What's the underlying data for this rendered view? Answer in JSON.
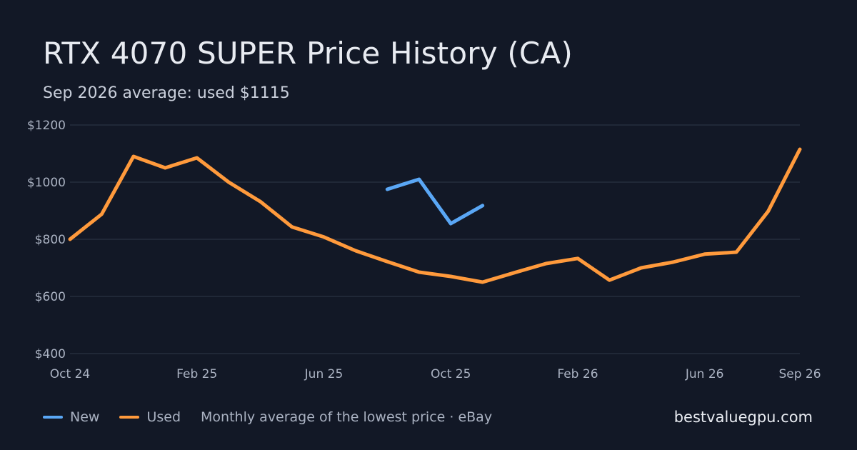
{
  "colors": {
    "background": "#121826",
    "new": "#5aa7f5",
    "used": "#ff9a3c",
    "grid": "#2a3242"
  },
  "chart_data": {
    "type": "line",
    "title": "RTX 4070 SUPER Price History (CA)",
    "subtitle": "Sep 2026 average: used $1115",
    "x": [
      "2024-10",
      "2024-11",
      "2024-12",
      "2025-01",
      "2025-02",
      "2025-03",
      "2025-04",
      "2025-05",
      "2025-06",
      "2025-07",
      "2025-08",
      "2025-09",
      "2025-10",
      "2025-11",
      "2025-12",
      "2026-01",
      "2026-02",
      "2026-03",
      "2026-04",
      "2026-05",
      "2026-06",
      "2026-07",
      "2026-08",
      "2026-09"
    ],
    "x_tick_labels": [
      "Oct 24",
      "Feb 25",
      "Jun 25",
      "Oct 25",
      "Feb 26",
      "Jun 26",
      "Sep 26"
    ],
    "x_tick_values": [
      "2024-10",
      "2025-02",
      "2025-06",
      "2025-10",
      "2026-02",
      "2026-06",
      "2026-09"
    ],
    "y_tick_labels": [
      "$400",
      "$600",
      "$800",
      "$1000",
      "$1200"
    ],
    "y_tick_values": [
      400,
      600,
      800,
      1000,
      1200
    ],
    "ylim": [
      400,
      1200
    ],
    "grid": true,
    "legend_position": "bottom-left",
    "series": [
      {
        "name": "New",
        "color": "#5aa7f5",
        "values": [
          null,
          null,
          null,
          null,
          null,
          null,
          null,
          null,
          null,
          null,
          975,
          1010,
          855,
          918,
          null,
          null,
          null,
          null,
          null,
          null,
          null,
          null,
          null,
          null
        ]
      },
      {
        "name": "Used",
        "color": "#ff9a3c",
        "values": [
          800,
          888,
          1090,
          1050,
          1085,
          1000,
          932,
          843,
          808,
          760,
          722,
          685,
          670,
          650,
          683,
          715,
          733,
          657,
          700,
          720,
          748,
          755,
          898,
          1115
        ]
      }
    ]
  },
  "legend": {
    "new_label": "New",
    "used_label": "Used",
    "note": "Monthly average of the lowest price · eBay"
  },
  "brand": "bestvaluegpu.com"
}
